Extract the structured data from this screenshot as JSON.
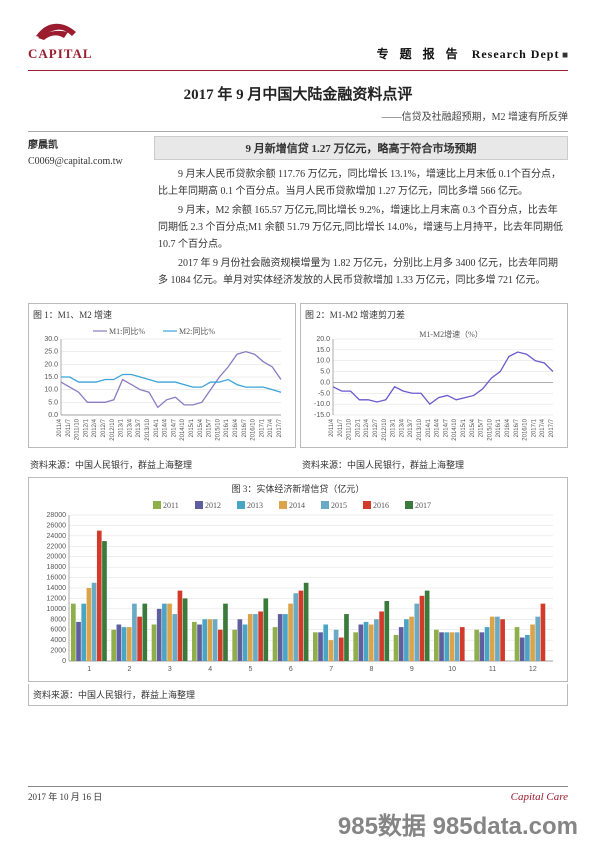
{
  "header": {
    "logo_text": "CAPITAL",
    "cn_title": "专 题 报 告",
    "dept": "Research Dept",
    "dept_square": "■"
  },
  "title": "2017 年 9 月中国大陆金融资料点评",
  "subtitle": "——信贷及社融超预期，M2 增速有所反弹",
  "author": {
    "name": "廖晨凯",
    "email": "C0069@capital.com.tw"
  },
  "subheader": "9 月新增信贷 1.27 万亿元，略高于符合市场预期",
  "body_paragraphs": [
    "9 月末人民币贷款余额 117.76 万亿元，同比增长 13.1%，增速比上月末低 0.1个百分点，比上年同期高 0.1 个百分点。当月人民币贷款增加 1.27 万亿元，同比多增 566 亿元。",
    "9 月末，M2 余额 165.57 万亿元,同比增长 9.2%，增速比上月末高 0.3 个百分点，比去年同期低 2.3 个百分点;M1 余额 51.79 万亿元,同比增长 14.0%，增速与上月持平，比去年同期低 10.7 个百分点。",
    "2017 年 9 月份社会融资规模增量为 1.82 万亿元，分别比上月多 3400 亿元，比去年同期多 1084 亿元。单月对实体经济发放的人民币贷款增加 1.33 万亿元，同比多增 721 亿元。"
  ],
  "chart1": {
    "caption": "图 1：M1、M2 增速",
    "source": "资料来源：中国人民银行，群益上海整理",
    "series": [
      {
        "name": "M1:同比%",
        "color": "#8a7bc2"
      },
      {
        "name": "M2:同比%",
        "color": "#3aa3d9"
      }
    ],
    "ylim": [
      0,
      30
    ],
    "ytick": 5,
    "x_labels": [
      "2011/4",
      "2011/7",
      "2011/10",
      "2012/1",
      "2012/4",
      "2012/7",
      "2012/10",
      "2013/1",
      "2013/4",
      "2013/7",
      "2013/10",
      "2014/1",
      "2014/4",
      "2014/7",
      "2014/10",
      "2015/1",
      "2015/4",
      "2015/7",
      "2015/10",
      "2016/1",
      "2016/4",
      "2016/7",
      "2016/10",
      "2017/1",
      "2017/4",
      "2017/7"
    ],
    "m1": [
      13,
      11,
      9,
      5,
      5,
      5,
      6,
      14,
      12,
      10,
      9,
      3,
      6,
      7,
      4,
      4,
      5,
      10,
      15,
      19,
      24,
      25,
      24,
      21,
      19,
      14
    ],
    "m2": [
      15,
      15,
      13,
      13,
      13,
      14,
      14,
      16,
      16,
      15,
      14,
      13,
      13,
      13,
      12,
      11,
      11,
      13,
      13,
      14,
      12,
      11,
      11,
      11,
      10,
      9
    ]
  },
  "chart2": {
    "caption": "图 2：M1-M2 增速剪刀差",
    "source": "资料来源：中国人民银行，群益上海整理",
    "title_inner": "M1-M2增速（%）",
    "color": "#6a5acd",
    "ylim": [
      -15,
      20
    ],
    "ytick": 5,
    "x_labels": [
      "2011/4",
      "2011/7",
      "2011/10",
      "2012/1",
      "2012/4",
      "2012/7",
      "2012/10",
      "2013/1",
      "2013/4",
      "2013/7",
      "2013/10",
      "2014/1",
      "2014/4",
      "2014/7",
      "2014/10",
      "2015/1",
      "2015/4",
      "2015/7",
      "2015/10",
      "2016/1",
      "2016/4",
      "2016/7",
      "2016/10",
      "2017/1",
      "2017/4",
      "2017/7"
    ],
    "diff": [
      -2,
      -4,
      -4,
      -8,
      -8,
      -9,
      -8,
      -2,
      -4,
      -5,
      -5,
      -10,
      -7,
      -6,
      -8,
      -7,
      -6,
      -3,
      2,
      5,
      12,
      14,
      13,
      10,
      9,
      5
    ]
  },
  "chart3": {
    "caption": "图 3：实体经济新增信贷（亿元）",
    "source": "资料来源：中国人民银行，群益上海整理",
    "ylim": [
      0,
      28000
    ],
    "ytick": 2000,
    "months": [
      "1",
      "2",
      "3",
      "4",
      "5",
      "6",
      "7",
      "8",
      "9",
      "10",
      "11",
      "12"
    ],
    "series": [
      {
        "name": "2011",
        "color": "#8faf4a",
        "vals": [
          11000,
          6000,
          7000,
          7500,
          6000,
          6500,
          5500,
          5500,
          5000,
          6000,
          6000,
          6500
        ]
      },
      {
        "name": "2012",
        "color": "#5f5fa0",
        "vals": [
          7500,
          7000,
          10000,
          7000,
          8000,
          9000,
          5500,
          7000,
          6500,
          5500,
          5500,
          4500
        ]
      },
      {
        "name": "2013",
        "color": "#4aa5c4",
        "vals": [
          11000,
          6500,
          11000,
          8000,
          7000,
          9000,
          7000,
          7500,
          8000,
          5500,
          6500,
          5000
        ]
      },
      {
        "name": "2014",
        "color": "#dba34a",
        "vals": [
          14000,
          6500,
          11000,
          8000,
          9000,
          11000,
          4000,
          7000,
          8500,
          5500,
          8500,
          7000
        ]
      },
      {
        "name": "2015",
        "color": "#6aaac4",
        "vals": [
          15000,
          11000,
          9000,
          8000,
          9000,
          13000,
          6000,
          8000,
          11000,
          5500,
          8500,
          8500
        ]
      },
      {
        "name": "2016",
        "color": "#d23a2a",
        "vals": [
          25000,
          8500,
          13500,
          6000,
          9500,
          13500,
          4500,
          9500,
          12500,
          6500,
          8000,
          11000
        ]
      },
      {
        "name": "2017",
        "color": "#3a7a3a",
        "vals": [
          23000,
          11000,
          12000,
          11000,
          12000,
          15000,
          9000,
          11500,
          13500,
          0,
          0,
          0
        ]
      }
    ]
  },
  "footer": {
    "date": "2017 年 10 月 16 日",
    "logo": "Capital Care"
  },
  "watermark": "985数据 985data.com"
}
